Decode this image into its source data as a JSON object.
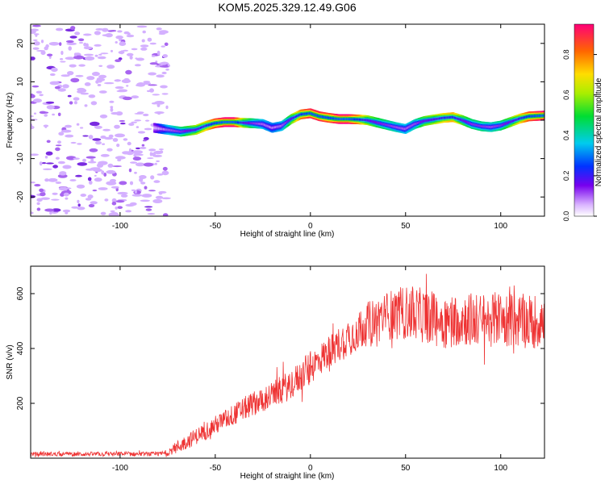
{
  "title": "KOM5.2025.329.12.49.G06",
  "chart_data": [
    {
      "type": "heatmap",
      "name": "spectrogram",
      "xlabel": "Height of straight line (km)",
      "ylabel": "Frequency (Hz)",
      "xlim": [
        -147,
        123
      ],
      "ylim": [
        -25,
        25
      ],
      "x_ticks": [
        -100,
        -50,
        0,
        50,
        100
      ],
      "y_ticks": [
        -20,
        -10,
        0,
        10,
        20
      ],
      "colorbar": {
        "label": "Normalized spectral amplitude",
        "range": [
          0,
          0.95
        ],
        "ticks": [
          0.0,
          0.2,
          0.4,
          0.6,
          0.8
        ]
      },
      "noise_region_x": [
        -147,
        -75
      ],
      "ridge": {
        "x": [
          -82,
          -75,
          -68,
          -60,
          -55,
          -50,
          -45,
          -40,
          -35,
          -30,
          -25,
          -20,
          -15,
          -10,
          -5,
          0,
          5,
          10,
          15,
          20,
          25,
          30,
          35,
          40,
          45,
          50,
          55,
          60,
          65,
          70,
          75,
          80,
          85,
          90,
          95,
          100,
          105,
          110,
          115,
          123
        ],
        "freq": [
          -2.0,
          -2.5,
          -3.0,
          -2.5,
          -1.5,
          -0.8,
          -0.5,
          -0.5,
          -0.7,
          -0.8,
          -1.0,
          -2.0,
          -1.5,
          0.3,
          1.5,
          1.8,
          1.0,
          0.6,
          0.3,
          0.3,
          0.2,
          0.0,
          -0.6,
          -1.2,
          -1.8,
          -2.3,
          -1.0,
          -0.2,
          0.2,
          0.6,
          0.8,
          0.0,
          -1.0,
          -1.6,
          -1.8,
          -1.4,
          -0.5,
          0.4,
          1.0,
          1.2
        ],
        "amp": [
          0.15,
          0.35,
          0.45,
          0.6,
          0.7,
          0.85,
          0.95,
          0.95,
          0.6,
          0.45,
          0.35,
          0.3,
          0.35,
          0.55,
          0.8,
          0.9,
          0.9,
          0.85,
          0.95,
          0.95,
          0.8,
          0.6,
          0.5,
          0.45,
          0.4,
          0.35,
          0.4,
          0.55,
          0.6,
          0.7,
          0.75,
          0.55,
          0.45,
          0.45,
          0.4,
          0.45,
          0.55,
          0.7,
          0.85,
          0.95
        ]
      }
    },
    {
      "type": "line",
      "name": "snr",
      "xlabel": "Height of straight line (km)",
      "ylabel": "SNR (v/v)",
      "xlim": [
        -147,
        123
      ],
      "ylim": [
        0,
        700
      ],
      "x_ticks": [
        -100,
        -50,
        0,
        50,
        100
      ],
      "y_ticks": [
        200,
        400,
        600
      ],
      "color": "#ee3333",
      "envelope": {
        "x": [
          -147,
          -100,
          -80,
          -75,
          -70,
          -60,
          -50,
          -40,
          -30,
          -20,
          -10,
          0,
          10,
          20,
          30,
          40,
          50,
          60,
          70,
          80,
          90,
          100,
          110,
          123
        ],
        "mean": [
          15,
          15,
          15,
          20,
          40,
          80,
          120,
          160,
          200,
          230,
          270,
          330,
          390,
          440,
          490,
          520,
          530,
          520,
          500,
          510,
          500,
          510,
          500,
          500
        ],
        "spread": [
          8,
          8,
          8,
          12,
          25,
          30,
          35,
          40,
          45,
          50,
          55,
          60,
          60,
          70,
          80,
          90,
          100,
          100,
          100,
          100,
          100,
          100,
          100,
          100
        ]
      }
    }
  ]
}
